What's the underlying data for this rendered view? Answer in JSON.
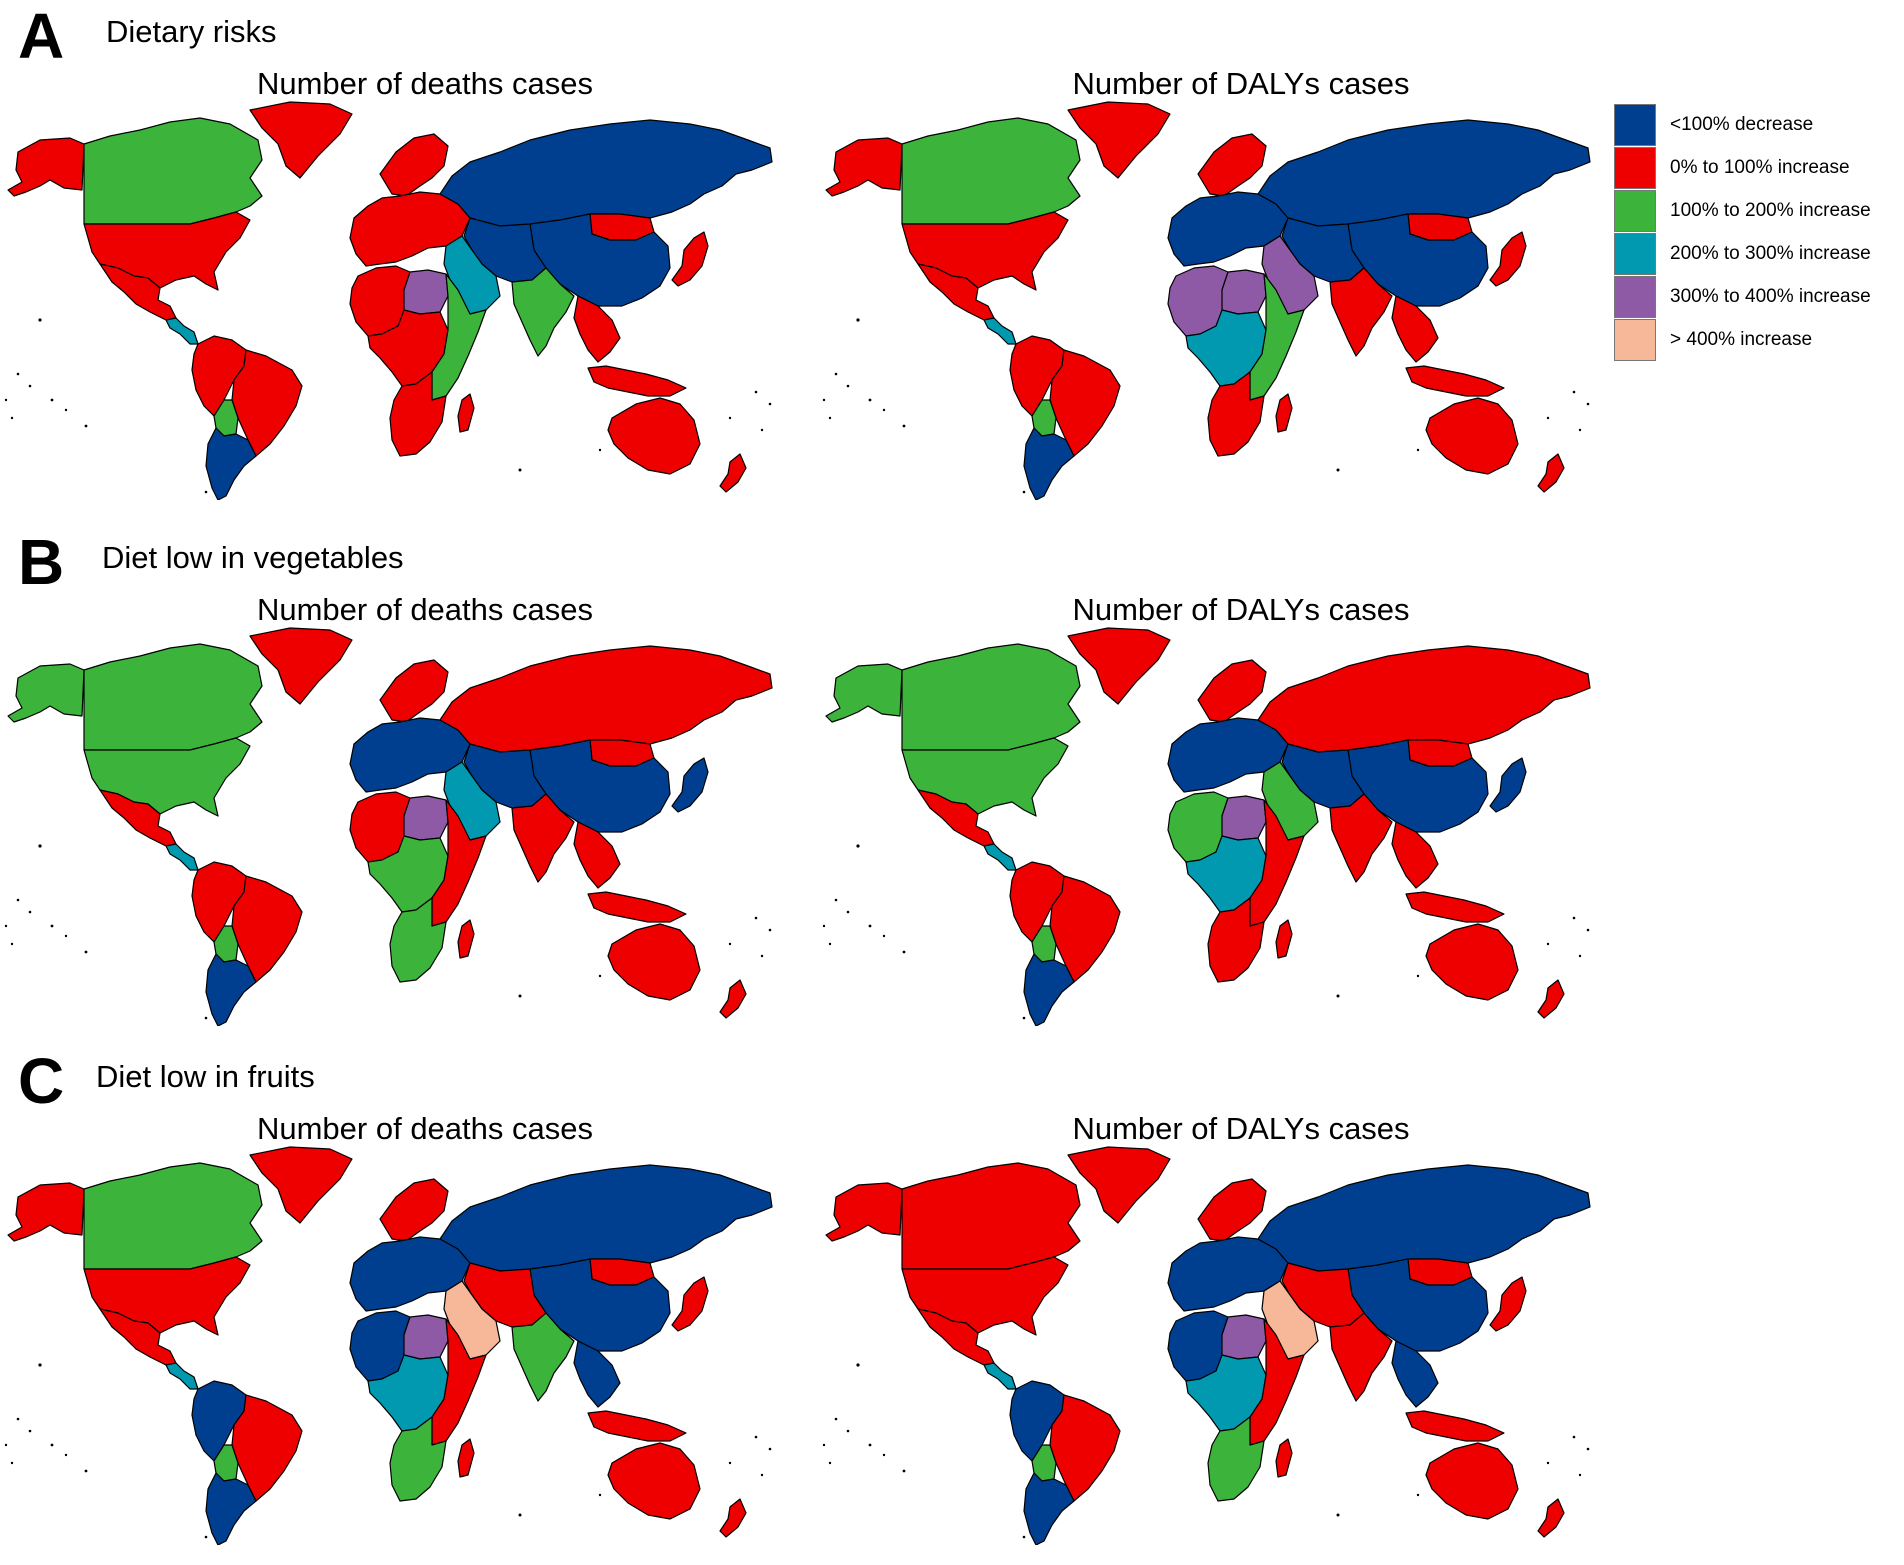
{
  "panels": [
    {
      "letter": "A",
      "title": "Dietary risks",
      "maps": [
        {
          "title": "Number of deaths cases",
          "colors": {
            "canada": "#3cb43c",
            "greenland": "#ee0000",
            "alaska": "#ee0000",
            "usa": "#ee0000",
            "mexico": "#ee0000",
            "central": "#0099b0",
            "southam": "#ee0000",
            "brazil": "#ee0000",
            "bolivia": "#3cb43c",
            "southcone": "#003f8f",
            "europe": "#ee0000",
            "scandinavia": "#ee0000",
            "russia": "#003f8f",
            "northafrica": "#ee0000",
            "libya": "#8e5aa6",
            "midafrica": "#ee0000",
            "eastafrica": "#3cb43c",
            "southafrica": "#ee0000",
            "middleeast": "#0099b0",
            "iran": "#003f8f",
            "india": "#3cb43c",
            "china": "#003f8f",
            "mongolia": "#ee0000",
            "seasia": "#ee0000",
            "japan": "#ee0000",
            "indonesia": "#ee0000",
            "australia": "#ee0000",
            "nz": "#ee0000",
            "madagascar": "#ee0000"
          }
        },
        {
          "title": "Number of DALYs cases",
          "colors": {
            "canada": "#3cb43c",
            "greenland": "#ee0000",
            "alaska": "#ee0000",
            "usa": "#ee0000",
            "mexico": "#ee0000",
            "central": "#0099b0",
            "southam": "#ee0000",
            "brazil": "#ee0000",
            "bolivia": "#3cb43c",
            "southcone": "#003f8f",
            "europe": "#003f8f",
            "scandinavia": "#ee0000",
            "russia": "#003f8f",
            "northafrica": "#8e5aa6",
            "libya": "#8e5aa6",
            "midafrica": "#0099b0",
            "eastafrica": "#3cb43c",
            "southafrica": "#ee0000",
            "middleeast": "#8e5aa6",
            "iran": "#003f8f",
            "india": "#ee0000",
            "china": "#003f8f",
            "mongolia": "#ee0000",
            "seasia": "#ee0000",
            "japan": "#ee0000",
            "indonesia": "#ee0000",
            "australia": "#ee0000",
            "nz": "#ee0000",
            "madagascar": "#ee0000"
          }
        }
      ]
    },
    {
      "letter": "B",
      "title": "Diet low in vegetables",
      "maps": [
        {
          "title": "Number of deaths cases",
          "colors": {
            "canada": "#3cb43c",
            "greenland": "#ee0000",
            "alaska": "#3cb43c",
            "usa": "#3cb43c",
            "mexico": "#ee0000",
            "central": "#0099b0",
            "southam": "#ee0000",
            "brazil": "#ee0000",
            "bolivia": "#3cb43c",
            "southcone": "#003f8f",
            "europe": "#003f8f",
            "scandinavia": "#ee0000",
            "russia": "#ee0000",
            "northafrica": "#ee0000",
            "libya": "#8e5aa6",
            "midafrica": "#3cb43c",
            "eastafrica": "#ee0000",
            "southafrica": "#3cb43c",
            "middleeast": "#0099b0",
            "iran": "#003f8f",
            "india": "#ee0000",
            "china": "#003f8f",
            "mongolia": "#ee0000",
            "seasia": "#ee0000",
            "japan": "#003f8f",
            "indonesia": "#ee0000",
            "australia": "#ee0000",
            "nz": "#ee0000",
            "madagascar": "#ee0000"
          }
        },
        {
          "title": "Number of DALYs cases",
          "colors": {
            "canada": "#3cb43c",
            "greenland": "#ee0000",
            "alaska": "#3cb43c",
            "usa": "#3cb43c",
            "mexico": "#ee0000",
            "central": "#0099b0",
            "southam": "#ee0000",
            "brazil": "#ee0000",
            "bolivia": "#3cb43c",
            "southcone": "#003f8f",
            "europe": "#003f8f",
            "scandinavia": "#ee0000",
            "russia": "#ee0000",
            "northafrica": "#3cb43c",
            "libya": "#8e5aa6",
            "midafrica": "#0099b0",
            "eastafrica": "#ee0000",
            "southafrica": "#ee0000",
            "middleeast": "#3cb43c",
            "iran": "#003f8f",
            "india": "#ee0000",
            "china": "#003f8f",
            "mongolia": "#ee0000",
            "seasia": "#ee0000",
            "japan": "#003f8f",
            "indonesia": "#ee0000",
            "australia": "#ee0000",
            "nz": "#ee0000",
            "madagascar": "#ee0000"
          }
        }
      ]
    },
    {
      "letter": "C",
      "title": "Diet low in fruits",
      "maps": [
        {
          "title": "Number of deaths cases",
          "colors": {
            "canada": "#3cb43c",
            "greenland": "#ee0000",
            "alaska": "#ee0000",
            "usa": "#ee0000",
            "mexico": "#ee0000",
            "central": "#0099b0",
            "southam": "#003f8f",
            "brazil": "#ee0000",
            "bolivia": "#3cb43c",
            "southcone": "#003f8f",
            "europe": "#003f8f",
            "scandinavia": "#ee0000",
            "russia": "#003f8f",
            "northafrica": "#003f8f",
            "libya": "#8e5aa6",
            "midafrica": "#0099b0",
            "eastafrica": "#ee0000",
            "southafrica": "#3cb43c",
            "middleeast": "#f7b799",
            "iran": "#ee0000",
            "india": "#3cb43c",
            "china": "#003f8f",
            "mongolia": "#ee0000",
            "seasia": "#003f8f",
            "japan": "#ee0000",
            "indonesia": "#ee0000",
            "australia": "#ee0000",
            "nz": "#ee0000",
            "madagascar": "#ee0000"
          }
        },
        {
          "title": "Number of DALYs cases",
          "colors": {
            "canada": "#ee0000",
            "greenland": "#ee0000",
            "alaska": "#ee0000",
            "usa": "#ee0000",
            "mexico": "#ee0000",
            "central": "#0099b0",
            "southam": "#003f8f",
            "brazil": "#ee0000",
            "bolivia": "#3cb43c",
            "southcone": "#003f8f",
            "europe": "#003f8f",
            "scandinavia": "#ee0000",
            "russia": "#003f8f",
            "northafrica": "#003f8f",
            "libya": "#8e5aa6",
            "midafrica": "#0099b0",
            "eastafrica": "#ee0000",
            "southafrica": "#3cb43c",
            "middleeast": "#f7b799",
            "iran": "#ee0000",
            "india": "#ee0000",
            "china": "#003f8f",
            "mongolia": "#ee0000",
            "seasia": "#003f8f",
            "japan": "#ee0000",
            "indonesia": "#ee0000",
            "australia": "#ee0000",
            "nz": "#ee0000",
            "madagascar": "#ee0000"
          }
        }
      ]
    }
  ],
  "legend": [
    {
      "label": "<100% decrease",
      "color": "#003f8f"
    },
    {
      "label": "0% to 100% increase",
      "color": "#ee0000"
    },
    {
      "label": "100% to 200% increase",
      "color": "#3cb43c"
    },
    {
      "label": "200% to 300% increase",
      "color": "#0099b0"
    },
    {
      "label": "300% to 400% increase",
      "color": "#8e5aa6"
    },
    {
      "label": "> 400% increase",
      "color": "#f7b799"
    }
  ]
}
